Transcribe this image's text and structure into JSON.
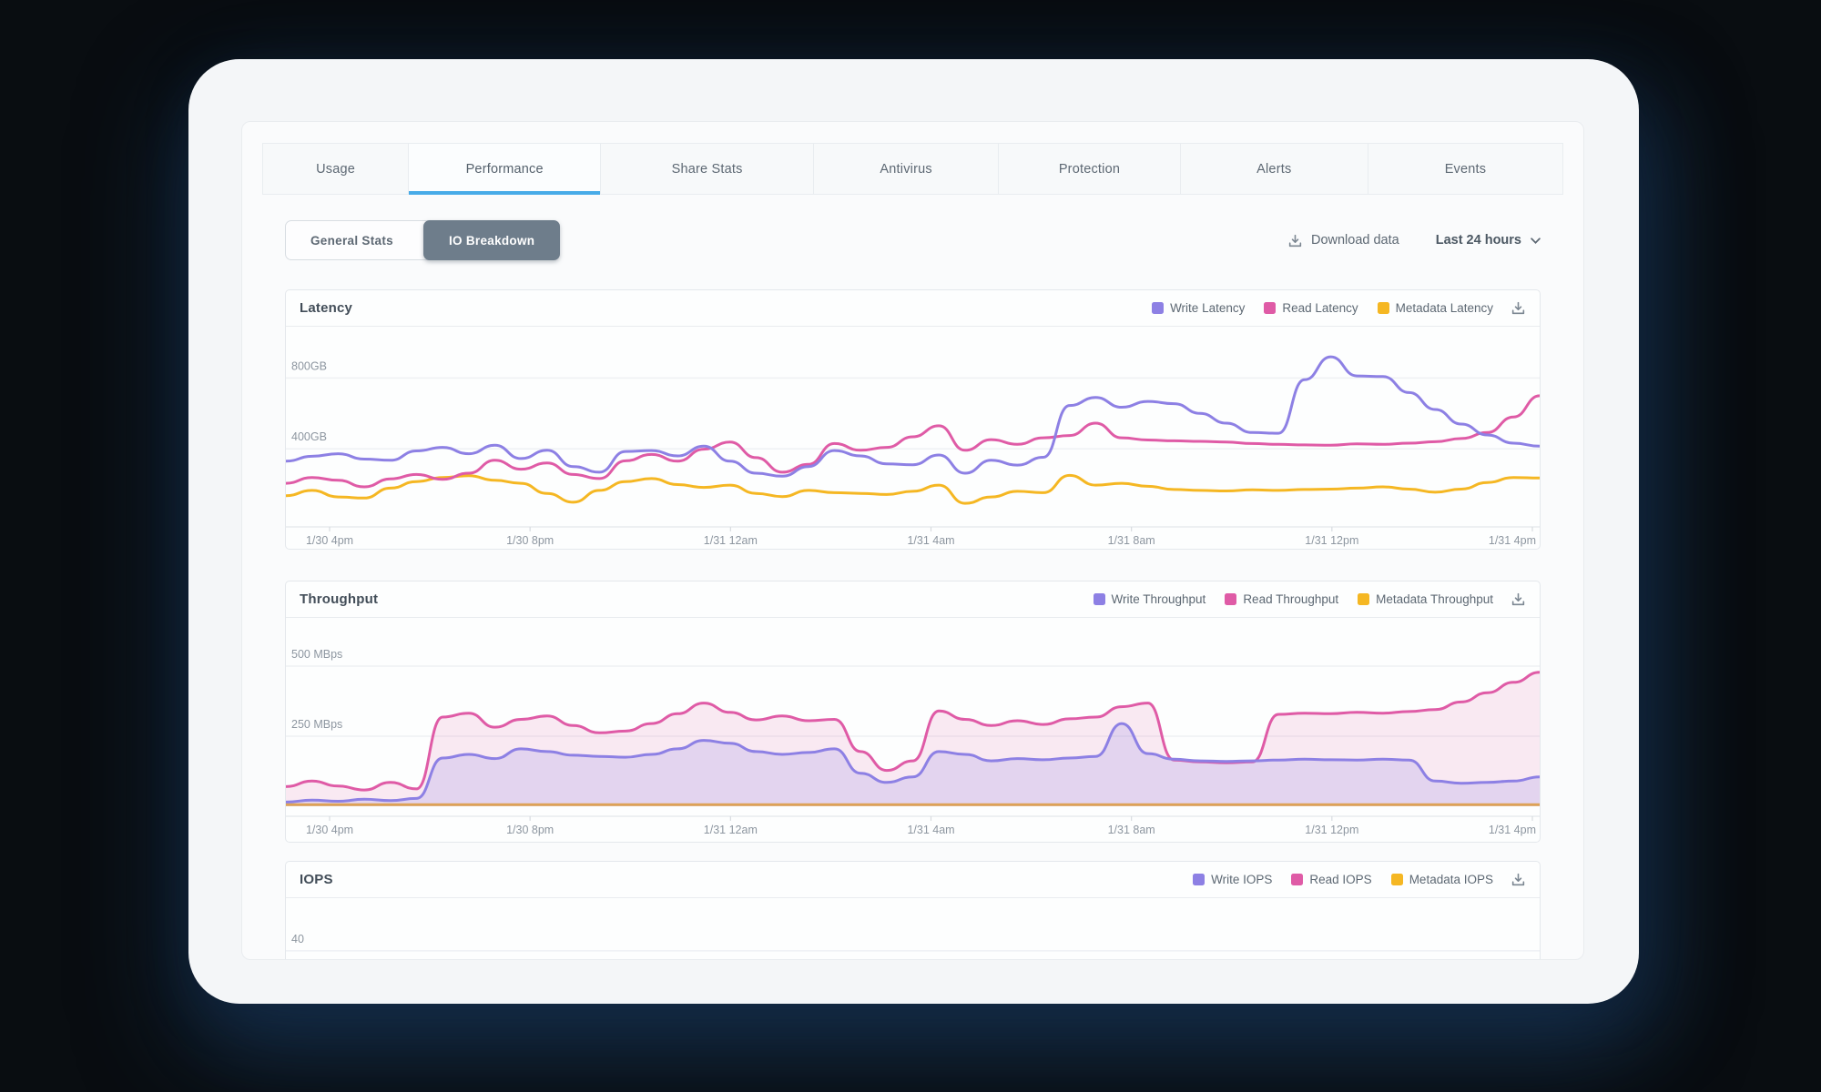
{
  "tabs": {
    "items": [
      {
        "label": "Usage",
        "active": false
      },
      {
        "label": "Performance",
        "active": true
      },
      {
        "label": "Share Stats",
        "active": false
      },
      {
        "label": "Antivirus",
        "active": false
      },
      {
        "label": "Protection",
        "active": false
      },
      {
        "label": "Alerts",
        "active": false
      },
      {
        "label": "Events",
        "active": false
      }
    ]
  },
  "controls": {
    "view_toggle": {
      "options": [
        "General Stats",
        "IO Breakdown"
      ],
      "selected": "IO Breakdown"
    },
    "download": {
      "label": "Download data",
      "icon": "download-icon"
    },
    "time_range": {
      "value": "Last 24 hours",
      "icon": "chevron-down-icon"
    }
  },
  "colors": {
    "write": "#8d80e4",
    "read": "#df5ba6",
    "metadata": "#f5b723",
    "tab_underline": "#47abe8",
    "toggle_active_bg": "#6e7d8b",
    "gridline": "#eef1f4",
    "axis_text": "#8d96a0"
  },
  "chart_data": [
    {
      "type": "line",
      "title": "Latency",
      "unit": "GB",
      "ylim": [
        0,
        1090
      ],
      "y_ticks": [
        {
          "value": 400,
          "label": "400GB"
        },
        {
          "value": 800,
          "label": "800GB"
        }
      ],
      "x_ticks": [
        "1/30 4pm",
        "1/30 8pm",
        "1/31 12am",
        "1/31 4am",
        "1/31 8am",
        "1/31 12pm",
        "1/31 4pm"
      ],
      "legend": [
        {
          "label": "Write Latency",
          "color": "#8d80e4"
        },
        {
          "label": "Read Latency",
          "color": "#df5ba6"
        },
        {
          "label": "Metadata Latency",
          "color": "#f5b723"
        }
      ],
      "series": [
        {
          "name": "Write Latency",
          "color": "#8d80e4",
          "area": false,
          "values": [
            330,
            358,
            372,
            342,
            335,
            388,
            408,
            372,
            420,
            345,
            392,
            300,
            268,
            385,
            390,
            360,
            415,
            330,
            262,
            245,
            300,
            390,
            360,
            315,
            310,
            365,
            262,
            335,
            308,
            352,
            645,
            690,
            635,
            668,
            655,
            600,
            545,
            492,
            488,
            790,
            920,
            812,
            808,
            718,
            622,
            540,
            478,
            432,
            415
          ]
        },
        {
          "name": "Read Latency",
          "color": "#df5ba6",
          "area": false,
          "values": [
            205,
            238,
            222,
            185,
            230,
            255,
            228,
            262,
            335,
            285,
            320,
            255,
            232,
            332,
            368,
            330,
            398,
            438,
            350,
            268,
            312,
            430,
            392,
            408,
            468,
            530,
            392,
            452,
            425,
            462,
            475,
            545,
            462,
            450,
            445,
            442,
            438,
            430,
            425,
            422,
            420,
            428,
            425,
            432,
            440,
            458,
            492,
            580,
            700
          ]
        },
        {
          "name": "Metadata Latency",
          "color": "#f5b723",
          "area": false,
          "values": [
            135,
            165,
            128,
            122,
            178,
            215,
            238,
            248,
            222,
            205,
            148,
            98,
            165,
            215,
            232,
            198,
            182,
            195,
            148,
            130,
            165,
            152,
            148,
            142,
            160,
            195,
            92,
            128,
            160,
            152,
            250,
            195,
            205,
            188,
            170,
            165,
            162,
            168,
            165,
            170,
            172,
            178,
            185,
            172,
            155,
            172,
            210,
            238,
            235
          ]
        }
      ]
    },
    {
      "type": "area",
      "title": "Throughput",
      "unit": "MBps",
      "ylim": [
        0,
        672
      ],
      "y_ticks": [
        {
          "value": 250,
          "label": "250 MBps"
        },
        {
          "value": 500,
          "label": "500 MBps"
        }
      ],
      "x_ticks": [
        "1/30 4pm",
        "1/30 8pm",
        "1/31 12am",
        "1/31 4am",
        "1/31 8am",
        "1/31 12pm",
        "1/31 4pm"
      ],
      "legend": [
        {
          "label": "Write Throughput",
          "color": "#8d80e4"
        },
        {
          "label": "Read Throughput",
          "color": "#df5ba6"
        },
        {
          "label": "Metadata Throughput",
          "color": "#f5b723"
        }
      ],
      "series": [
        {
          "name": "Write Throughput",
          "color": "#8d80e4",
          "area": true,
          "values": [
            15,
            22,
            18,
            25,
            20,
            28,
            172,
            185,
            170,
            205,
            195,
            182,
            178,
            175,
            185,
            205,
            235,
            225,
            195,
            185,
            192,
            205,
            118,
            85,
            105,
            195,
            185,
            162,
            170,
            166,
            172,
            178,
            295,
            188,
            168,
            162,
            160,
            162,
            165,
            168,
            166,
            165,
            168,
            165,
            90,
            82,
            85,
            90,
            105
          ]
        },
        {
          "name": "Read Throughput",
          "color": "#df5ba6",
          "area": true,
          "values": [
            70,
            90,
            72,
            58,
            85,
            62,
            318,
            332,
            282,
            310,
            322,
            288,
            262,
            268,
            295,
            330,
            368,
            335,
            308,
            322,
            305,
            310,
            195,
            128,
            162,
            340,
            310,
            288,
            305,
            292,
            312,
            318,
            355,
            368,
            165,
            158,
            155,
            158,
            328,
            332,
            330,
            335,
            332,
            338,
            345,
            372,
            405,
            442,
            478
          ]
        },
        {
          "name": "Metadata Throughput",
          "color": "#f5b723",
          "area": false,
          "values": [
            6,
            6,
            6,
            6,
            6,
            6,
            6,
            6,
            6,
            6,
            6,
            6,
            6,
            6,
            6,
            6,
            6,
            6,
            6,
            6,
            6,
            6,
            6,
            6,
            6,
            6,
            6,
            6,
            6,
            6,
            6,
            6,
            6,
            6,
            6,
            6,
            6,
            6,
            6,
            6,
            6,
            6,
            6,
            6,
            6,
            6,
            6,
            6,
            6
          ]
        }
      ]
    },
    {
      "type": "line",
      "title": "IOPS",
      "unit": "",
      "ylim": [
        0,
        70
      ],
      "y_ticks": [
        {
          "value": 40,
          "label": "40"
        }
      ],
      "x_ticks": [],
      "legend": [
        {
          "label": "Write IOPS",
          "color": "#8d80e4"
        },
        {
          "label": "Read IOPS",
          "color": "#df5ba6"
        },
        {
          "label": "Metadata IOPS",
          "color": "#f5b723"
        }
      ],
      "series": [
        {
          "name": "Write IOPS",
          "color": "#8d80e4",
          "area": false,
          "values": []
        },
        {
          "name": "Read IOPS",
          "color": "#df5ba6",
          "area": false,
          "values": []
        },
        {
          "name": "Metadata IOPS",
          "color": "#f5b723",
          "area": false,
          "values": []
        }
      ]
    }
  ]
}
